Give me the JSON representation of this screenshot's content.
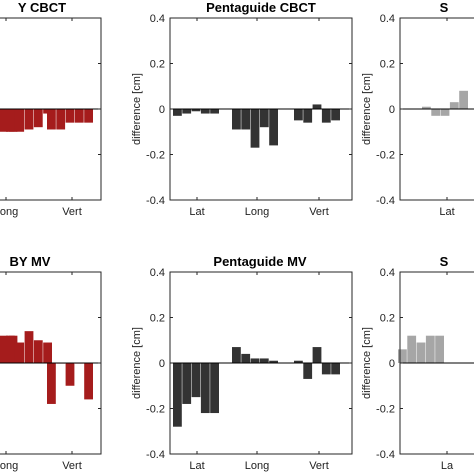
{
  "chart_data": [
    {
      "type": "bar",
      "title": "Y CBCT",
      "ylabel": "",
      "ylim": [
        -0.4,
        0.4
      ],
      "yticks": [],
      "categories": [
        "",
        "Long",
        "Vert"
      ],
      "color": "#a51c1c",
      "groups": [
        [
          -0.1,
          -0.1,
          -0.1
        ],
        [
          -0.1,
          -0.1,
          -0.09,
          -0.08,
          -0.02
        ],
        [
          -0.09,
          -0.09,
          -0.06,
          -0.06,
          -0.06
        ]
      ]
    },
    {
      "type": "bar",
      "title": "Pentaguide CBCT",
      "ylabel": "difference [cm]",
      "ylim": [
        -0.4,
        0.4
      ],
      "yticks": [
        "0.4",
        "0.2",
        "0",
        "-0.2",
        "-0.4"
      ],
      "categories": [
        "Lat",
        "Long",
        "Vert"
      ],
      "color": "#333333",
      "groups": [
        [
          -0.03,
          -0.02,
          -0.01,
          -0.02,
          -0.02
        ],
        [
          -0.09,
          -0.09,
          -0.17,
          -0.08,
          -0.16
        ],
        [
          -0.05,
          -0.06,
          0.02,
          -0.06,
          -0.05
        ]
      ]
    },
    {
      "type": "bar",
      "title": "S",
      "ylabel": "difference [cm]",
      "ylim": [
        -0.4,
        0.4
      ],
      "yticks": [
        "0.4",
        "0.2",
        "0",
        "-0.2",
        "-0.4"
      ],
      "categories": [
        "Lat",
        ""
      ],
      "color": "#a6a6a6",
      "groups": [
        [
          0.01,
          -0.03,
          -0.03,
          0.03,
          0.08
        ]
      ]
    },
    {
      "type": "bar",
      "title": "BY MV",
      "ylabel": "",
      "ylim": [
        -0.4,
        0.4
      ],
      "yticks": [],
      "categories": [
        "",
        "Long",
        "Vert"
      ],
      "color": "#a51c1c",
      "groups": [
        [
          0.12,
          0.12,
          0.12
        ],
        [
          0.12,
          0.09,
          0.14,
          0.1,
          0.09
        ],
        [
          -0.18,
          0.0,
          -0.1,
          0.0,
          -0.16
        ]
      ]
    },
    {
      "type": "bar",
      "title": "Pentaguide MV",
      "ylabel": "difference [cm]",
      "ylim": [
        -0.4,
        0.4
      ],
      "yticks": [
        "0.4",
        "0.2",
        "0",
        "-0.2",
        "-0.4"
      ],
      "categories": [
        "Lat",
        "Long",
        "Vert"
      ],
      "color": "#333333",
      "groups": [
        [
          -0.28,
          -0.18,
          -0.15,
          -0.22,
          -0.22
        ],
        [
          0.07,
          0.04,
          0.02,
          0.02,
          0.01
        ],
        [
          0.01,
          -0.07,
          0.07,
          -0.05,
          -0.05
        ]
      ]
    },
    {
      "type": "bar",
      "title": "S",
      "ylabel": "difference [cm]",
      "ylim": [
        -0.4,
        0.4
      ],
      "yticks": [
        "0.4",
        "0.2",
        "0",
        "-0.2",
        "-0.4"
      ],
      "categories": [
        "La",
        ""
      ],
      "color": "#a6a6a6",
      "groups": [
        [
          0.06,
          0.12,
          0.09,
          0.12,
          0.12
        ]
      ]
    }
  ]
}
